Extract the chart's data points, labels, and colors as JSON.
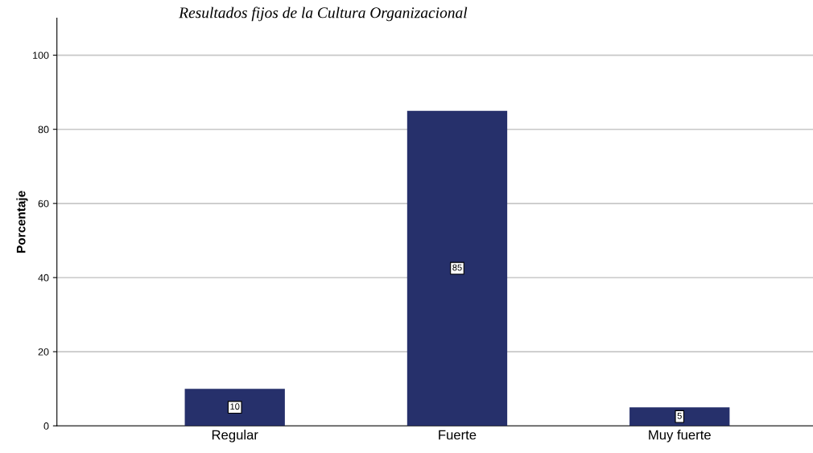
{
  "chart_data": {
    "type": "bar",
    "title": "Resultados fijos de la Cultura Organizacional",
    "ylabel": "Porcentaje",
    "categories": [
      "Regular",
      "Fuerte",
      "Muy fuerte"
    ],
    "values": [
      10,
      85,
      5
    ],
    "color": "#26306b",
    "ylim": [
      0,
      110
    ],
    "yticks": [
      0,
      20,
      40,
      60,
      80,
      100
    ],
    "grid": "y",
    "data_labels": true
  }
}
